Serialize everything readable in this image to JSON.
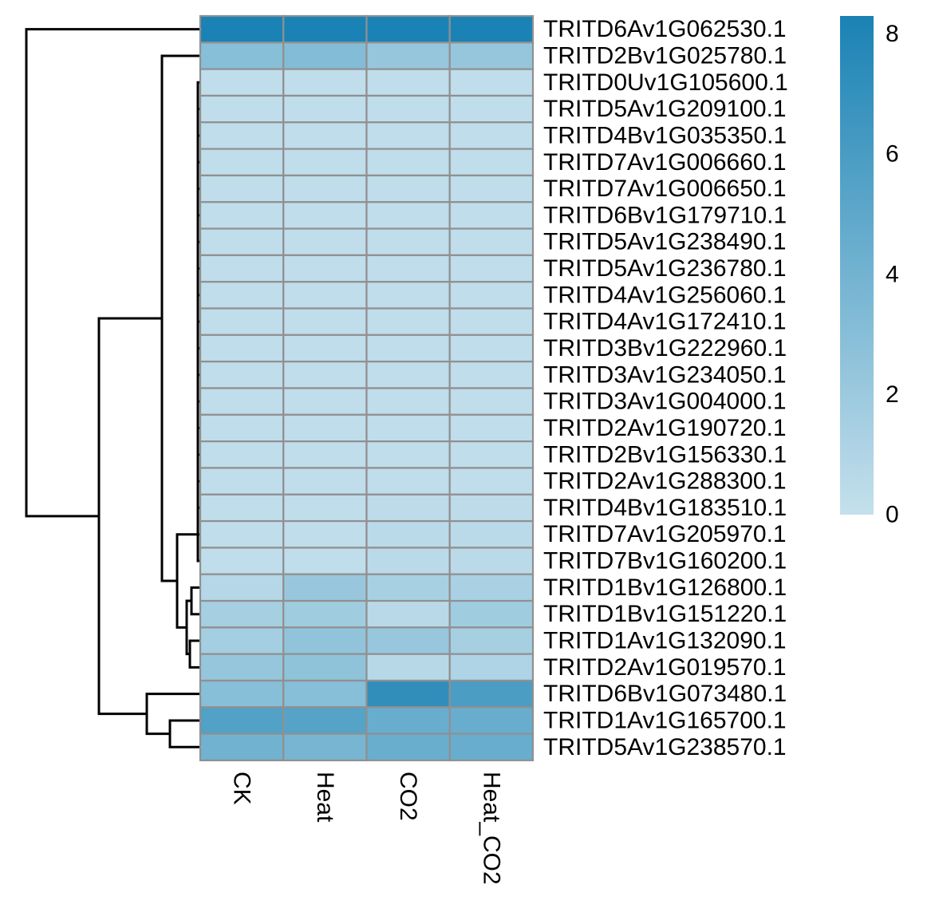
{
  "chart_data": {
    "type": "heatmap",
    "columns": [
      "CK",
      "Heat",
      "CO2",
      "Heat_CO2"
    ],
    "rows": [
      "TRITD6Av1G062530.1",
      "TRITD2Bv1G025780.1",
      "TRITD0Uv1G105600.1",
      "TRITD5Av1G209100.1",
      "TRITD4Bv1G035350.1",
      "TRITD7Av1G006660.1",
      "TRITD7Av1G006650.1",
      "TRITD6Bv1G179710.1",
      "TRITD5Av1G238490.1",
      "TRITD5Av1G236780.1",
      "TRITD4Av1G256060.1",
      "TRITD4Av1G172410.1",
      "TRITD3Bv1G222960.1",
      "TRITD3Av1G234050.1",
      "TRITD3Av1G004000.1",
      "TRITD2Av1G190720.1",
      "TRITD2Bv1G156330.1",
      "TRITD2Av1G288300.1",
      "TRITD4Bv1G183510.1",
      "TRITD7Av1G205970.1",
      "TRITD7Bv1G160200.1",
      "TRITD1Bv1G126800.1",
      "TRITD1Bv1G151220.1",
      "TRITD1Av1G132090.1",
      "TRITD2Av1G019570.1",
      "TRITD6Bv1G073480.1",
      "TRITD1Av1G165700.1",
      "TRITD5Av1G238570.1"
    ],
    "values": [
      [
        8.3,
        8.3,
        8.3,
        8.3
      ],
      [
        3.0,
        3.2,
        2.3,
        2.3
      ],
      [
        0.3,
        0.3,
        0.3,
        0.3
      ],
      [
        0.3,
        0.3,
        0.3,
        0.3
      ],
      [
        0.3,
        0.3,
        0.3,
        0.3
      ],
      [
        0.3,
        0.3,
        0.3,
        0.3
      ],
      [
        0.3,
        0.3,
        0.3,
        0.3
      ],
      [
        0.3,
        0.3,
        0.3,
        0.3
      ],
      [
        0.3,
        0.3,
        0.3,
        0.3
      ],
      [
        0.3,
        0.3,
        0.3,
        0.3
      ],
      [
        0.3,
        0.3,
        0.3,
        0.3
      ],
      [
        0.3,
        0.3,
        0.3,
        0.3
      ],
      [
        0.3,
        0.3,
        0.3,
        0.3
      ],
      [
        0.3,
        0.3,
        0.3,
        0.3
      ],
      [
        0.3,
        0.3,
        0.3,
        0.3
      ],
      [
        0.3,
        0.3,
        0.3,
        0.3
      ],
      [
        0.3,
        0.3,
        0.3,
        0.3
      ],
      [
        0.3,
        0.3,
        0.3,
        0.3
      ],
      [
        0.3,
        0.3,
        0.4,
        0.4
      ],
      [
        0.3,
        0.3,
        0.5,
        0.5
      ],
      [
        0.3,
        0.3,
        0.5,
        0.5
      ],
      [
        0.8,
        2.2,
        1.4,
        1.3
      ],
      [
        1.5,
        1.8,
        0.6,
        1.8
      ],
      [
        1.6,
        2.5,
        2.2,
        1.5
      ],
      [
        2.3,
        2.6,
        0.7,
        1.1
      ],
      [
        3.0,
        3.0,
        7.2,
        5.9
      ],
      [
        5.6,
        5.4,
        4.5,
        4.5
      ],
      [
        4.1,
        3.8,
        4.4,
        4.5
      ]
    ],
    "colorbar": {
      "min": 0,
      "max": 8.3,
      "ticks": [
        0,
        2,
        4,
        6,
        8
      ],
      "low_color": "#c5e0ec",
      "high_color": "#1a82b4"
    },
    "cell_border_color": "#909090",
    "row_dendrogram": true,
    "legend_position": "right"
  }
}
